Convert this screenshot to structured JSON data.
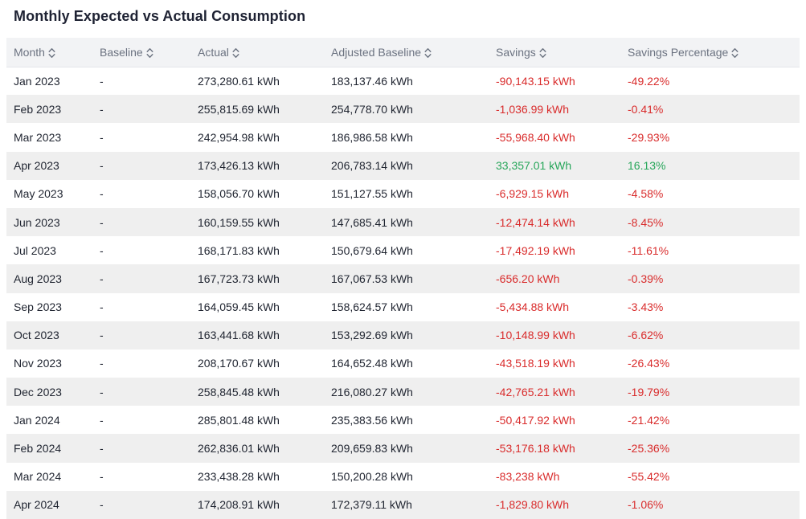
{
  "title": "Monthly Expected vs Actual Consumption",
  "colors": {
    "negative": "#d92c2c",
    "positive": "#27a65a",
    "header_bg": "#f2f3f5",
    "stripe_bg": "#efefef"
  },
  "table": {
    "sort_icon": "sort-up-down-icon",
    "columns": [
      "Month",
      "Baseline",
      "Actual",
      "Adjusted Baseline",
      "Savings",
      "Savings Percentage"
    ],
    "rows": [
      {
        "month": "Jan 2023",
        "baseline": "-",
        "actual": "273,280.61 kWh",
        "adjusted": "183,137.46 kWh",
        "savings": "-90,143.15 kWh",
        "pct": "-49.22%",
        "sign": "neg"
      },
      {
        "month": "Feb 2023",
        "baseline": "-",
        "actual": "255,815.69 kWh",
        "adjusted": "254,778.70 kWh",
        "savings": "-1,036.99 kWh",
        "pct": "-0.41%",
        "sign": "neg"
      },
      {
        "month": "Mar 2023",
        "baseline": "-",
        "actual": "242,954.98 kWh",
        "adjusted": "186,986.58 kWh",
        "savings": "-55,968.40 kWh",
        "pct": "-29.93%",
        "sign": "neg"
      },
      {
        "month": "Apr 2023",
        "baseline": "-",
        "actual": "173,426.13 kWh",
        "adjusted": "206,783.14 kWh",
        "savings": "33,357.01 kWh",
        "pct": "16.13%",
        "sign": "pos"
      },
      {
        "month": "May 2023",
        "baseline": "-",
        "actual": "158,056.70 kWh",
        "adjusted": "151,127.55 kWh",
        "savings": "-6,929.15 kWh",
        "pct": "-4.58%",
        "sign": "neg"
      },
      {
        "month": "Jun 2023",
        "baseline": "-",
        "actual": "160,159.55 kWh",
        "adjusted": "147,685.41 kWh",
        "savings": "-12,474.14 kWh",
        "pct": "-8.45%",
        "sign": "neg"
      },
      {
        "month": "Jul 2023",
        "baseline": "-",
        "actual": "168,171.83 kWh",
        "adjusted": "150,679.64 kWh",
        "savings": "-17,492.19 kWh",
        "pct": "-11.61%",
        "sign": "neg"
      },
      {
        "month": "Aug 2023",
        "baseline": "-",
        "actual": "167,723.73 kWh",
        "adjusted": "167,067.53 kWh",
        "savings": "-656.20 kWh",
        "pct": "-0.39%",
        "sign": "neg"
      },
      {
        "month": "Sep 2023",
        "baseline": "-",
        "actual": "164,059.45 kWh",
        "adjusted": "158,624.57 kWh",
        "savings": "-5,434.88 kWh",
        "pct": "-3.43%",
        "sign": "neg"
      },
      {
        "month": "Oct 2023",
        "baseline": "-",
        "actual": "163,441.68 kWh",
        "adjusted": "153,292.69 kWh",
        "savings": "-10,148.99 kWh",
        "pct": "-6.62%",
        "sign": "neg"
      },
      {
        "month": "Nov 2023",
        "baseline": "-",
        "actual": "208,170.67 kWh",
        "adjusted": "164,652.48 kWh",
        "savings": "-43,518.19 kWh",
        "pct": "-26.43%",
        "sign": "neg"
      },
      {
        "month": "Dec 2023",
        "baseline": "-",
        "actual": "258,845.48 kWh",
        "adjusted": "216,080.27 kWh",
        "savings": "-42,765.21 kWh",
        "pct": "-19.79%",
        "sign": "neg"
      },
      {
        "month": "Jan 2024",
        "baseline": "-",
        "actual": "285,801.48 kWh",
        "adjusted": "235,383.56 kWh",
        "savings": "-50,417.92 kWh",
        "pct": "-21.42%",
        "sign": "neg"
      },
      {
        "month": "Feb 2024",
        "baseline": "-",
        "actual": "262,836.01 kWh",
        "adjusted": "209,659.83 kWh",
        "savings": "-53,176.18 kWh",
        "pct": "-25.36%",
        "sign": "neg"
      },
      {
        "month": "Mar 2024",
        "baseline": "-",
        "actual": "233,438.28 kWh",
        "adjusted": "150,200.28 kWh",
        "savings": "-83,238 kWh",
        "pct": "-55.42%",
        "sign": "neg"
      },
      {
        "month": "Apr 2024",
        "baseline": "-",
        "actual": "174,208.91 kWh",
        "adjusted": "172,379.11 kWh",
        "savings": "-1,829.80 kWh",
        "pct": "-1.06%",
        "sign": "neg"
      }
    ]
  }
}
